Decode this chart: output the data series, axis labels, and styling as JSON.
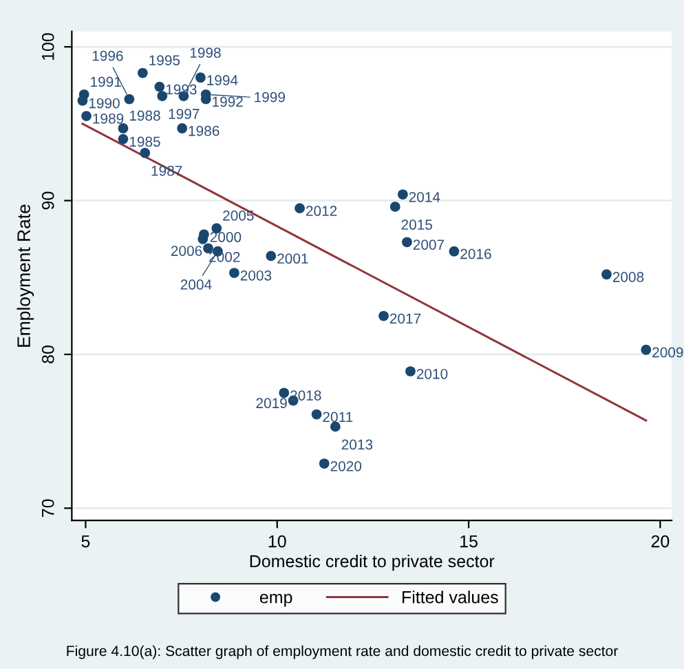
{
  "chart_data": {
    "type": "scatter",
    "xlabel": "Domestic credit to private sector",
    "ylabel": "Employment Rate",
    "xlim": [
      4.64,
      20.3
    ],
    "ylim": [
      69.2,
      101.0
    ],
    "xticks": [
      5,
      10,
      15,
      20
    ],
    "yticks": [
      70,
      80,
      90,
      100
    ],
    "grid": "y",
    "legend": "bottom",
    "marker": "circle",
    "series": [
      {
        "name": "emp",
        "type": "scatter",
        "color": "#1a476f",
        "x": [
          5.98,
          7.52,
          6.55,
          5.98,
          5.02,
          4.92,
          4.96,
          8.14,
          6.93,
          8.0,
          6.49,
          6.14,
          7.0,
          7.56,
          8.14,
          8.09,
          9.84,
          8.06,
          8.88,
          8.45,
          8.42,
          8.2,
          13.39,
          18.6,
          19.63,
          13.48,
          11.03,
          10.59,
          11.52,
          13.28,
          13.08,
          14.62,
          12.78,
          10.18,
          10.42,
          11.23
        ],
        "values": [
          94.0,
          94.7,
          93.1,
          94.7,
          95.5,
          96.5,
          96.9,
          96.6,
          97.4,
          98.0,
          98.3,
          96.6,
          96.8,
          96.8,
          96.9,
          87.8,
          86.4,
          87.5,
          85.3,
          86.7,
          88.2,
          86.9,
          87.3,
          85.2,
          80.3,
          78.9,
          76.1,
          89.5,
          75.3,
          90.4,
          89.6,
          86.7,
          82.5,
          77.5,
          77.0,
          72.9
        ]
      },
      {
        "name": "Fitted values",
        "type": "line",
        "color": "#90353b",
        "marker": "none",
        "x": [
          4.92,
          19.63
        ],
        "values": [
          95.0,
          75.7
        ]
      }
    ],
    "annotations": [
      {
        "text": "1985",
        "x": 5.98,
        "y": 94.0
      },
      {
        "text": "1986",
        "x": 7.52,
        "y": 94.7
      },
      {
        "text": "1987",
        "x": 6.55,
        "y": 93.1
      },
      {
        "text": "1988",
        "x": 5.98,
        "y": 94.7
      },
      {
        "text": "1989",
        "x": 5.02,
        "y": 95.5
      },
      {
        "text": "1990",
        "x": 4.92,
        "y": 96.5
      },
      {
        "text": "1991",
        "x": 4.96,
        "y": 96.9
      },
      {
        "text": "1992",
        "x": 8.14,
        "y": 96.6
      },
      {
        "text": "1993",
        "x": 6.93,
        "y": 97.4
      },
      {
        "text": "1994",
        "x": 8.0,
        "y": 98.0
      },
      {
        "text": "1995",
        "x": 6.49,
        "y": 98.3
      },
      {
        "text": "1996",
        "x": 6.14,
        "y": 96.6
      },
      {
        "text": "1997",
        "x": 7.0,
        "y": 96.8
      },
      {
        "text": "1998",
        "x": 7.56,
        "y": 96.8
      },
      {
        "text": "1999",
        "x": 8.14,
        "y": 96.9
      },
      {
        "text": "2000",
        "x": 8.09,
        "y": 87.8
      },
      {
        "text": "2001",
        "x": 9.84,
        "y": 86.4
      },
      {
        "text": "2002",
        "x": 8.06,
        "y": 87.5
      },
      {
        "text": "2003",
        "x": 8.88,
        "y": 85.3
      },
      {
        "text": "2004",
        "x": 8.45,
        "y": 86.7
      },
      {
        "text": "2005",
        "x": 8.42,
        "y": 88.2
      },
      {
        "text": "2006",
        "x": 8.2,
        "y": 86.9
      },
      {
        "text": "2007",
        "x": 13.39,
        "y": 87.3
      },
      {
        "text": "2008",
        "x": 18.6,
        "y": 85.2
      },
      {
        "text": "2009",
        "x": 19.63,
        "y": 80.3
      },
      {
        "text": "2010",
        "x": 13.48,
        "y": 78.9
      },
      {
        "text": "2011",
        "x": 11.03,
        "y": 76.1
      },
      {
        "text": "2012",
        "x": 10.59,
        "y": 89.5
      },
      {
        "text": "2013",
        "x": 11.52,
        "y": 75.3
      },
      {
        "text": "2014",
        "x": 13.28,
        "y": 90.4
      },
      {
        "text": "2015",
        "x": 13.08,
        "y": 89.6
      },
      {
        "text": "2016",
        "x": 14.62,
        "y": 86.7
      },
      {
        "text": "2017",
        "x": 12.78,
        "y": 82.5
      },
      {
        "text": "2018",
        "x": 10.18,
        "y": 77.5
      },
      {
        "text": "2019",
        "x": 10.42,
        "y": 77.0
      },
      {
        "text": "2020",
        "x": 11.23,
        "y": 72.9
      },
      "Figure 4.10(a): Scatter graph of employment rate and domestic credit to private sector"
    ]
  }
}
